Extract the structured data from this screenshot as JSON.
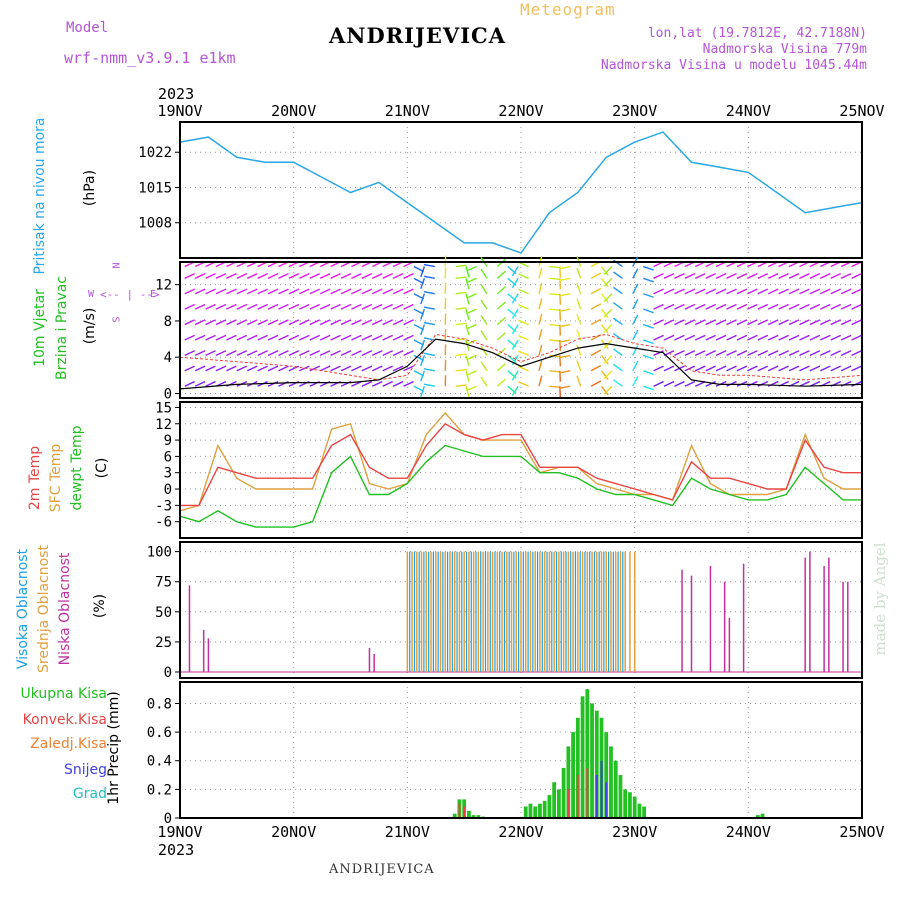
{
  "header": {
    "model_label": "Model",
    "model_name": "wrf-nmm_v3.9.1  e1km",
    "station": "ANDRIJEVICA",
    "product": "Meteogram",
    "lonlat": "lon,lat (19.7812E, 42.7188N)",
    "elevation": "Nadmorska Visina 779m",
    "model_elevation": "Nadmorska Visina u modelu 1045.44m"
  },
  "footer": {
    "station": "ANDRIJEVICA",
    "credit": "made by Angel"
  },
  "time_axis": {
    "year": "2023",
    "ticks": [
      "19NOV",
      "20NOV",
      "21NOV",
      "22NOV",
      "23NOV",
      "24NOV",
      "25NOV"
    ]
  },
  "colors": {
    "pressure": "#2aa7e6",
    "wind_speed": "#000000",
    "gust": "#e63c3c",
    "temp2m": "#e84545",
    "sfc_temp": "#e0a040",
    "dewpt": "#22c022",
    "high_cloud": "#1ea0e0",
    "mid_cloud": "#e0a040",
    "low_cloud": "#c030a0",
    "total_precip": "#22c022",
    "conv_precip": "#e84545",
    "frozen_precip": "#f08030",
    "snow": "#4040e0",
    "hail": "#20c0c0",
    "credit": "#cfe0cf"
  },
  "panels": {
    "pressure": {
      "label": "Pritisak na nivou mora",
      "unit": "(hPa)",
      "yticks": [
        1008,
        1015,
        1022
      ],
      "ylim": [
        1001,
        1028
      ]
    },
    "wind": {
      "label_line1": "10m Vjetar",
      "label_line2": "Brzina i Pravac",
      "unit": "(m/s)",
      "compass_n": "N",
      "compass_s": "S",
      "compass_e": "E",
      "compass_w": "W",
      "yticks": [
        0,
        4,
        8,
        12
      ],
      "ylim": [
        -0.5,
        14.5
      ]
    },
    "temperature": {
      "label1": "2m Temp",
      "label2": "SFC Temp",
      "label3": "dewpt Temp",
      "unit": "(C)",
      "yticks": [
        -6,
        -3,
        0,
        3,
        6,
        9,
        12,
        15
      ],
      "ylim": [
        -9,
        16
      ]
    },
    "cloud": {
      "label1": "Visoka Oblacnost",
      "label2": "Srednja Oblacnost",
      "label3": "Niska Oblacnost",
      "unit": "(%)",
      "yticks": [
        0,
        25,
        50,
        75,
        100
      ],
      "ylim": [
        -5,
        108
      ]
    },
    "precip": {
      "legend": [
        "Ukupna Kisa",
        "Konvek.Kisa",
        "Zaledj.Kisa",
        "Snijeg",
        "Grad"
      ],
      "label": "1hr Precip (mm)",
      "yticks": [
        "0",
        "0.2",
        "0.4",
        "0.6",
        "0.8"
      ],
      "ylim": [
        0,
        0.95
      ]
    }
  },
  "chart_data": [
    {
      "type": "line",
      "name": "pressure",
      "x_hours": [
        0,
        6,
        12,
        18,
        24,
        30,
        36,
        42,
        48,
        54,
        60,
        66,
        72,
        78,
        84,
        90,
        96,
        102,
        108,
        114,
        120,
        126,
        132,
        138,
        144
      ],
      "series": [
        {
          "name": "Pritisak na nivou mora",
          "values": [
            1024,
            1025,
            1021,
            1020,
            1020,
            1017,
            1014,
            1016,
            1012,
            1008,
            1004,
            1004,
            1002,
            1010,
            1014,
            1021,
            1024,
            1026,
            1020,
            1019,
            1018,
            1014,
            1010,
            1011,
            1012
          ]
        }
      ]
    },
    {
      "type": "line",
      "name": "wind_speed",
      "x_hours": [
        0,
        12,
        24,
        36,
        42,
        48,
        54,
        60,
        66,
        72,
        78,
        84,
        90,
        96,
        102,
        108,
        114,
        120,
        132,
        144
      ],
      "series": [
        {
          "name": "speed",
          "values": [
            0.5,
            1.0,
            1.2,
            1.2,
            1.5,
            3.0,
            6.0,
            5.5,
            4.5,
            3.0,
            4.0,
            5.0,
            5.5,
            5.0,
            4.5,
            1.5,
            1.0,
            1.0,
            0.8,
            1.0
          ]
        },
        {
          "name": "gust",
          "values": [
            4.0,
            3.5,
            3.0,
            2.0,
            1.5,
            2.0,
            6.5,
            6.0,
            5.0,
            3.5,
            4.5,
            6.0,
            6.5,
            5.5,
            5.0,
            2.5,
            2.0,
            2.0,
            1.5,
            2.0
          ]
        }
      ]
    },
    {
      "type": "line",
      "name": "temperature",
      "x_hours": [
        0,
        4,
        8,
        12,
        16,
        20,
        24,
        28,
        32,
        36,
        40,
        44,
        48,
        52,
        56,
        60,
        64,
        68,
        72,
        76,
        80,
        84,
        88,
        92,
        96,
        100,
        104,
        108,
        112,
        116,
        120,
        124,
        128,
        132,
        136,
        140,
        144
      ],
      "series": [
        {
          "name": "2m Temp",
          "values": [
            -3,
            -3,
            4,
            3,
            2,
            2,
            2,
            2,
            8,
            10,
            4,
            2,
            2,
            8,
            12,
            10,
            9,
            10,
            10,
            4,
            4,
            4,
            2,
            1,
            0,
            -1,
            -2,
            5,
            2,
            2,
            1,
            0,
            0,
            9,
            4,
            3,
            3
          ]
        },
        {
          "name": "SFC Temp",
          "values": [
            -4,
            -3,
            8,
            2,
            0,
            0,
            0,
            0,
            11,
            12,
            1,
            0,
            1,
            10,
            14,
            10,
            9,
            9,
            9,
            3,
            4,
            4,
            1,
            0,
            -1,
            -1,
            -2,
            8,
            1,
            -1,
            -1,
            -1,
            0,
            10,
            2,
            0,
            0
          ]
        },
        {
          "name": "dewpt Temp",
          "values": [
            -5,
            -6,
            -4,
            -6,
            -7,
            -7,
            -7,
            -6,
            3,
            6,
            -1,
            -1,
            1,
            5,
            8,
            7,
            6,
            6,
            6,
            3,
            3,
            2,
            0,
            -1,
            -1,
            -2,
            -3,
            2,
            0,
            -1,
            -2,
            -2,
            -1,
            4,
            1,
            -2,
            -2
          ]
        }
      ]
    },
    {
      "type": "bar",
      "name": "cloud",
      "total_hours": 144,
      "series": [
        {
          "name": "Niska Oblacnost",
          "spikes": [
            [
              2,
              72
            ],
            [
              5,
              35
            ],
            [
              6,
              28
            ],
            [
              40,
              20
            ],
            [
              41,
              15
            ],
            [
              106,
              85
            ],
            [
              108,
              80
            ],
            [
              112,
              88
            ],
            [
              115,
              75
            ],
            [
              116,
              45
            ],
            [
              119,
              90
            ],
            [
              132,
              95
            ],
            [
              133,
              100
            ],
            [
              136,
              88
            ],
            [
              137,
              95
            ],
            [
              140,
              75
            ],
            [
              141,
              75
            ]
          ]
        },
        {
          "name": "Srednja Oblacnost",
          "block_hours": [
            48,
            96
          ],
          "value": 100
        },
        {
          "name": "Visoka Oblacnost",
          "block_hours": [
            48,
            94
          ],
          "value": 100
        }
      ]
    },
    {
      "type": "bar",
      "name": "precip",
      "series": [
        {
          "name": "Ukupna Kisa",
          "bars": [
            [
              58,
              0.03
            ],
            [
              59,
              0.13
            ],
            [
              60,
              0.13
            ],
            [
              61,
              0.05
            ],
            [
              62,
              0.02
            ],
            [
              63,
              0.02
            ],
            [
              64,
              0.01
            ],
            [
              73,
              0.08
            ],
            [
              74,
              0.1
            ],
            [
              75,
              0.08
            ],
            [
              76,
              0.1
            ],
            [
              77,
              0.12
            ],
            [
              78,
              0.16
            ],
            [
              79,
              0.25
            ],
            [
              80,
              0.2
            ],
            [
              81,
              0.35
            ],
            [
              82,
              0.5
            ],
            [
              83,
              0.6
            ],
            [
              84,
              0.7
            ],
            [
              85,
              0.85
            ],
            [
              86,
              0.9
            ],
            [
              87,
              0.8
            ],
            [
              88,
              0.75
            ],
            [
              89,
              0.7
            ],
            [
              90,
              0.6
            ],
            [
              91,
              0.5
            ],
            [
              92,
              0.4
            ],
            [
              93,
              0.3
            ],
            [
              94,
              0.2
            ],
            [
              95,
              0.18
            ],
            [
              96,
              0.15
            ],
            [
              97,
              0.1
            ],
            [
              98,
              0.08
            ],
            [
              122,
              0.02
            ],
            [
              123,
              0.03
            ]
          ]
        },
        {
          "name": "Konvek.Kisa",
          "bars": [
            [
              59,
              0.1
            ],
            [
              60,
              0.08
            ],
            [
              82,
              0.2
            ],
            [
              84,
              0.3
            ],
            [
              86,
              0.35
            ]
          ]
        },
        {
          "name": "Snijeg",
          "bars": [
            [
              88,
              0.3
            ],
            [
              89,
              0.4
            ],
            [
              90,
              0.25
            ]
          ]
        }
      ]
    }
  ]
}
